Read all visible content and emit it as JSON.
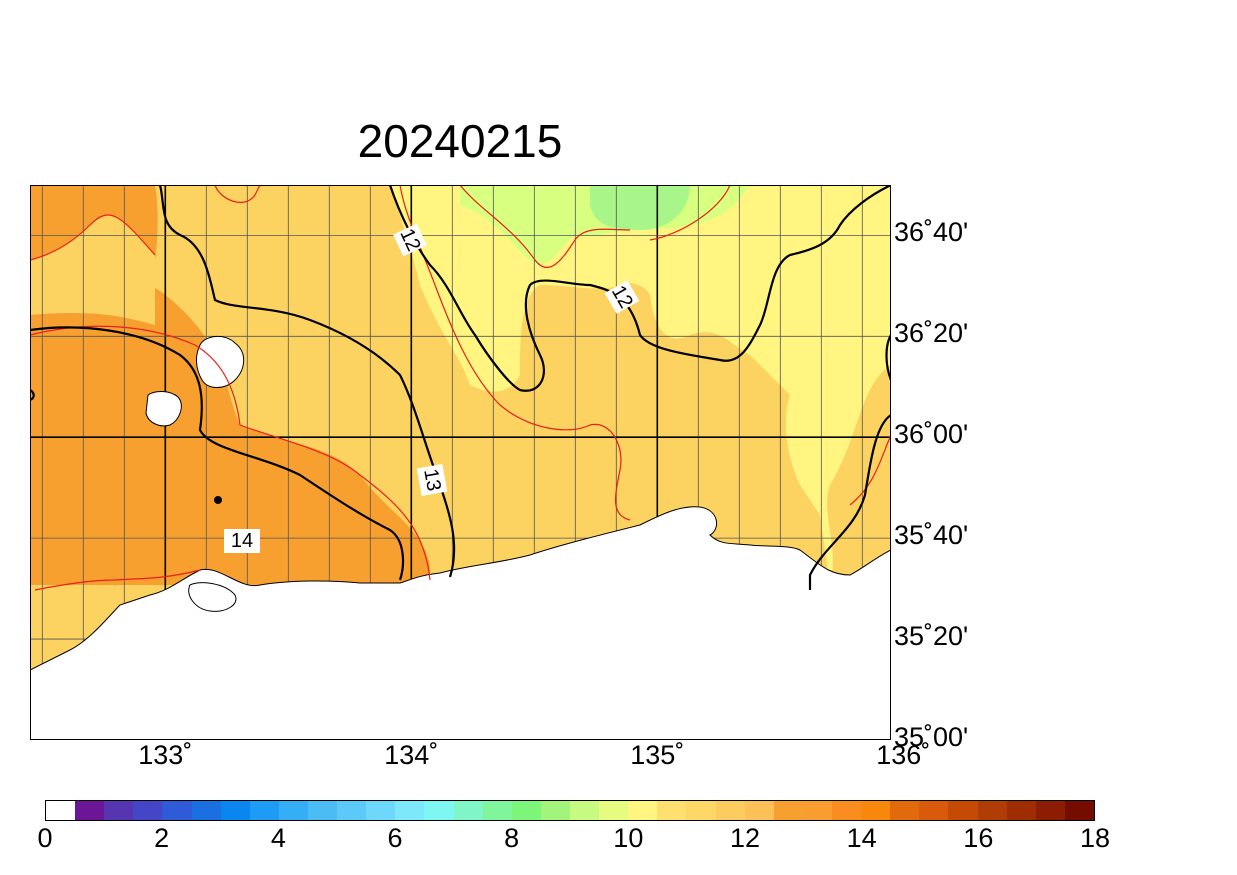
{
  "title": "20240215",
  "map": {
    "lat_labels": [
      {
        "text": "36˚40'",
        "lat": 36.667
      },
      {
        "text": "36˚20'",
        "lat": 36.333
      },
      {
        "text": "36˚00'",
        "lat": 36.0
      },
      {
        "text": "35˚40'",
        "lat": 35.667
      },
      {
        "text": "35˚20'",
        "lat": 35.333
      },
      {
        "text": "35˚00'",
        "lat": 35.0
      }
    ],
    "lon_labels": [
      {
        "text": "133˚",
        "lon": 133
      },
      {
        "text": "134˚",
        "lon": 134
      },
      {
        "text": "135˚",
        "lon": 135
      },
      {
        "text": "136˚",
        "lon": 136
      }
    ],
    "contour_labels": [
      {
        "text": "12",
        "value": 12
      },
      {
        "text": "12",
        "value": 12
      },
      {
        "text": "13",
        "value": 13
      },
      {
        "text": "14",
        "value": 14
      }
    ],
    "fill_colors": {
      "deep_orange": "#f7a030",
      "light_orange": "#fcd260",
      "yellow": "#fff580",
      "light_green": "#d9ff80",
      "green": "#a8f58a",
      "land": "#ffffff"
    }
  },
  "colorbar": {
    "colors": [
      "#ffffff",
      "#6a1696",
      "#5535b0",
      "#4545c8",
      "#2f5ad8",
      "#1a70e0",
      "#0a86f0",
      "#1e9cf5",
      "#35aef5",
      "#4cbcf5",
      "#5ccaf8",
      "#6ed8fa",
      "#7ce8fa",
      "#7ef7f2",
      "#80f5c8",
      "#80f59c",
      "#7df57a",
      "#a2f57a",
      "#c6fa80",
      "#e6fc80",
      "#fff580",
      "#fde070",
      "#fdd866",
      "#fccc60",
      "#fcc058",
      "#f7a030",
      "#f99d30",
      "#fa8c20",
      "#f7880c",
      "#e06a0c",
      "#d85a0a",
      "#c44a06",
      "#b03c06",
      "#a02c04",
      "#8c1c02",
      "#740c00"
    ],
    "labels": [
      "0",
      "2",
      "4",
      "6",
      "8",
      "10",
      "12",
      "14",
      "16",
      "18"
    ]
  }
}
